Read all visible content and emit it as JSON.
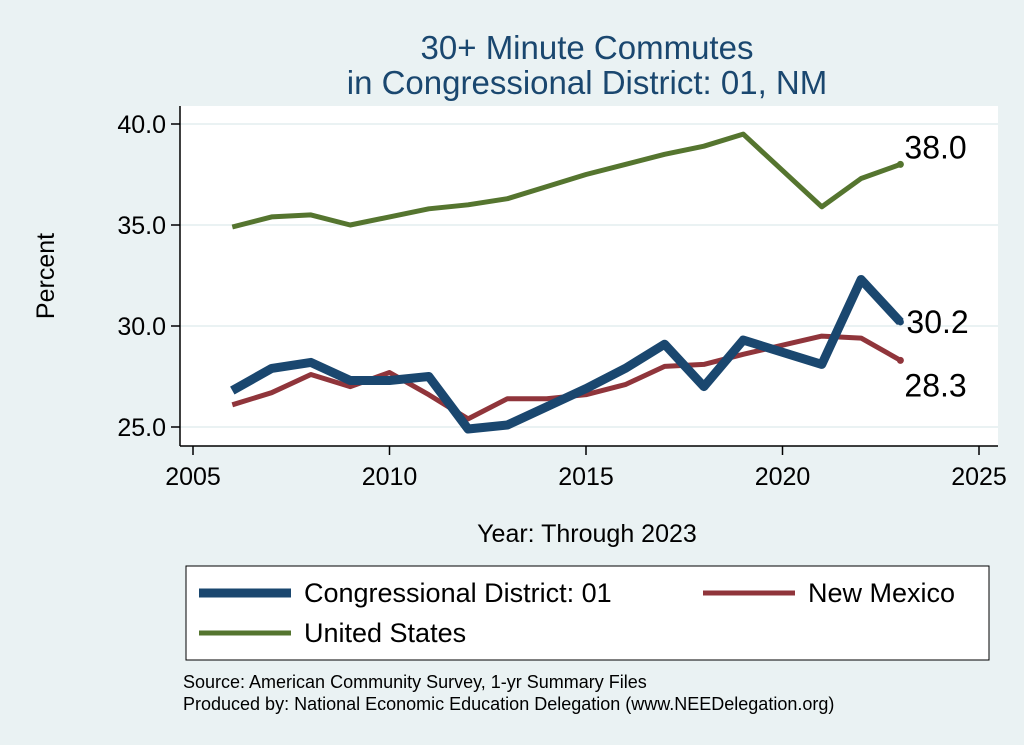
{
  "chart_data": {
    "type": "line",
    "title": [
      "30+ Minute Commutes",
      "in Congressional District:  01, NM"
    ],
    "xlabel": "Year: Through 2023",
    "ylabel": "Percent",
    "xlim": [
      2005,
      2025
    ],
    "ylim": [
      25.0,
      40.0
    ],
    "xticks": [
      2005,
      2010,
      2015,
      2020,
      2025
    ],
    "xtick_labels": [
      "2005",
      "2010",
      "2015",
      "2020",
      "2025"
    ],
    "yticks": [
      25.0,
      30.0,
      35.0,
      40.0
    ],
    "ytick_labels": [
      "25.0",
      "30.0",
      "35.0",
      "40.0"
    ],
    "grid": true,
    "legend_position": "bottom",
    "x": [
      2006,
      2007,
      2008,
      2009,
      2010,
      2011,
      2012,
      2013,
      2014,
      2015,
      2016,
      2017,
      2018,
      2019,
      2021,
      2022,
      2023
    ],
    "series": [
      {
        "name": "Congressional District:  01",
        "color": "#1a476f",
        "values": [
          26.8,
          27.9,
          28.2,
          27.3,
          27.3,
          27.5,
          24.9,
          25.1,
          26.0,
          26.9,
          27.9,
          29.1,
          27.0,
          29.3,
          28.1,
          32.3,
          30.2
        ],
        "end_label": "30.2"
      },
      {
        "name": "New Mexico",
        "color": "#90353b",
        "values": [
          26.1,
          26.7,
          27.6,
          27.0,
          27.7,
          26.6,
          25.4,
          26.4,
          26.4,
          26.6,
          27.1,
          28.0,
          28.1,
          28.6,
          29.5,
          29.4,
          28.3
        ],
        "end_label": "28.3"
      },
      {
        "name": "United States",
        "color": "#55752f",
        "values": [
          34.9,
          35.4,
          35.5,
          35.0,
          35.4,
          35.8,
          36.0,
          36.3,
          36.9,
          37.5,
          38.0,
          38.5,
          38.9,
          39.5,
          35.9,
          37.3,
          38.0
        ],
        "end_label": "38.0"
      }
    ],
    "source": [
      "Source: American Community Survey, 1-yr Summary Files",
      "Produced by: National Economic Education Delegation (www.NEEDelegation.org)"
    ]
  }
}
